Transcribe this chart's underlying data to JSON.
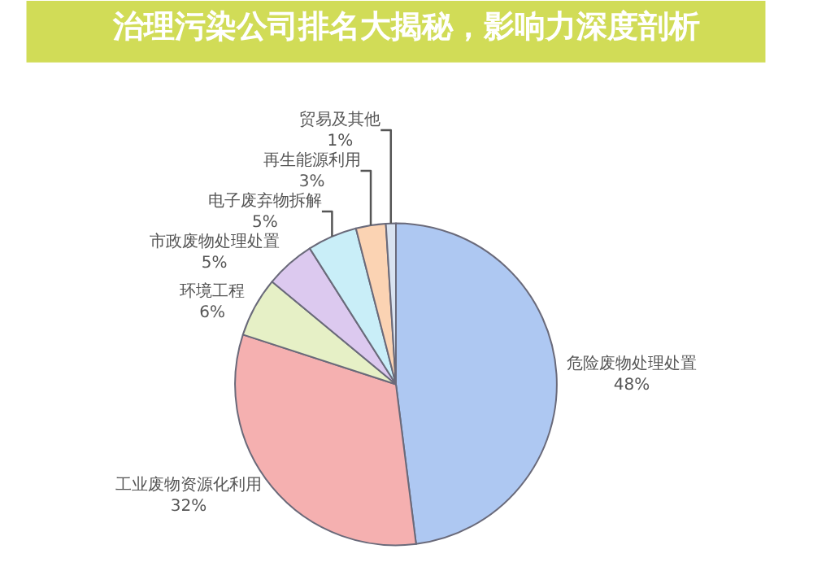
{
  "chart_data": {
    "type": "pie",
    "title": "治理污染公司排名大揭秘，影响力深度剖析",
    "categories": [
      "危险废物处理处置",
      "工业废物资源化利用",
      "环境工程",
      "市政废物处理处置",
      "电子废弃物拆解",
      "再生能源利用",
      "贸易及其他"
    ],
    "values": [
      48,
      32,
      6,
      5,
      5,
      3,
      1
    ],
    "value_labels": [
      "48%",
      "32%",
      "6%",
      "5%",
      "5%",
      "3%",
      "1%"
    ],
    "colors": [
      "#aec8f2",
      "#f5b0b0",
      "#e6f0c6",
      "#dcc9ef",
      "#c9eef8",
      "#fbd3b3",
      "#d9e3f1"
    ],
    "legend": false
  }
}
